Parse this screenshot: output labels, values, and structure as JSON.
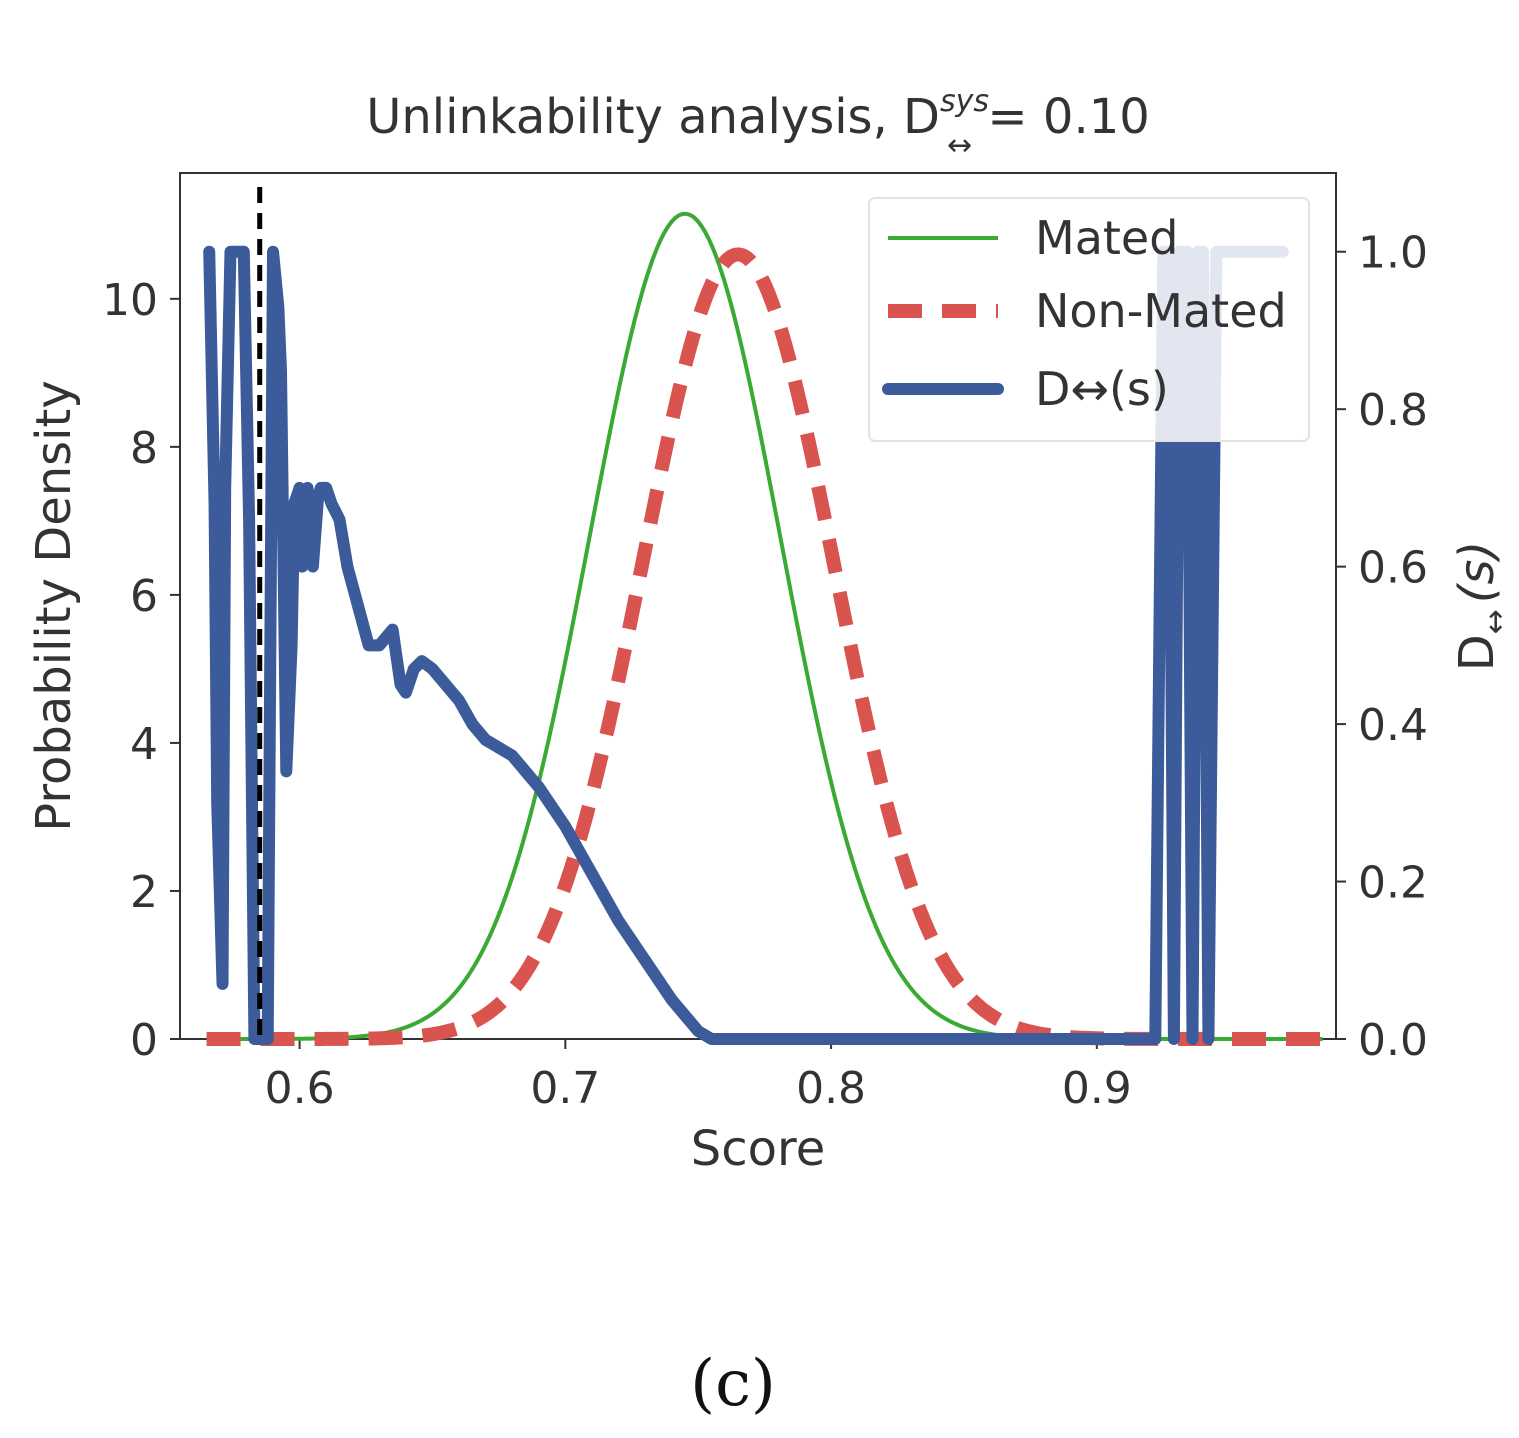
{
  "chart_data": {
    "type": "line",
    "title": {
      "prefix": "Unlinkability analysis, D",
      "superscript": "sys",
      "subscript": "↔",
      "suffix": " = 0.10"
    },
    "xlabel": "Score",
    "ylabel": "Probability Density",
    "ylabel_right": {
      "main": "D",
      "sub": "↔",
      "paren": "(s)"
    },
    "xlim": [
      0.555,
      0.99
    ],
    "ylim": [
      0,
      11.7
    ],
    "ylim_right": [
      0,
      1.1
    ],
    "xticks": [
      {
        "value": 0.6,
        "label": "0.6"
      },
      {
        "value": 0.7,
        "label": "0.7"
      },
      {
        "value": 0.8,
        "label": "0.8"
      },
      {
        "value": 0.9,
        "label": "0.9"
      }
    ],
    "yticks": [
      {
        "value": 0,
        "label": "0"
      },
      {
        "value": 2,
        "label": "2"
      },
      {
        "value": 4,
        "label": "4"
      },
      {
        "value": 6,
        "label": "6"
      },
      {
        "value": 8,
        "label": "8"
      },
      {
        "value": 10,
        "label": "10"
      }
    ],
    "yticks_right": [
      {
        "value": 0.0,
        "label": "0.0"
      },
      {
        "value": 0.2,
        "label": "0.2"
      },
      {
        "value": 0.4,
        "label": "0.4"
      },
      {
        "value": 0.6,
        "label": "0.6"
      },
      {
        "value": 0.8,
        "label": "0.8"
      },
      {
        "value": 1.0,
        "label": "1.0"
      }
    ],
    "threshold_line": {
      "x": 0.585
    },
    "legend_position": "top-right",
    "series": [
      {
        "name": "Mated",
        "legend_label": "Mated",
        "axis": "left",
        "color": "#3aaa35",
        "style": "solid",
        "curve": "gaussian",
        "mean": 0.745,
        "sd": 0.036,
        "peak": 11.15,
        "x_range": [
          0.565,
          0.985
        ]
      },
      {
        "name": "Non-Mated",
        "legend_label": "Non-Mated",
        "axis": "left",
        "color": "#d9534f",
        "style": "dashed",
        "curve": "gaussian",
        "mean": 0.765,
        "sd": 0.036,
        "peak": 10.6,
        "x_range": [
          0.565,
          0.985
        ]
      },
      {
        "name": "D(s)",
        "legend_label": "D↔(s)",
        "axis": "right",
        "color": "#3b5b9a",
        "style": "solid",
        "x": [
          0.566,
          0.568,
          0.569,
          0.571,
          0.572,
          0.574,
          0.575,
          0.577,
          0.579,
          0.581,
          0.583,
          0.584,
          0.586,
          0.588,
          0.59,
          0.592,
          0.593,
          0.595,
          0.597,
          0.598,
          0.6,
          0.601,
          0.603,
          0.605,
          0.607,
          0.608,
          0.61,
          0.612,
          0.615,
          0.618,
          0.622,
          0.626,
          0.63,
          0.635,
          0.638,
          0.64,
          0.643,
          0.646,
          0.65,
          0.655,
          0.66,
          0.665,
          0.67,
          0.675,
          0.68,
          0.69,
          0.7,
          0.71,
          0.72,
          0.73,
          0.74,
          0.75,
          0.755,
          0.8,
          0.85,
          0.9,
          0.922,
          0.925,
          0.927,
          0.929,
          0.931,
          0.934,
          0.936,
          0.938,
          0.94,
          0.942,
          0.945,
          0.948,
          0.95,
          0.96,
          0.97
        ],
        "values": [
          1.0,
          0.68,
          0.3,
          0.07,
          0.7,
          1.0,
          1.0,
          1.0,
          1.0,
          0.66,
          0.0,
          0.0,
          0.0,
          0.0,
          1.0,
          0.93,
          0.85,
          0.34,
          0.5,
          0.68,
          0.7,
          0.6,
          0.7,
          0.6,
          0.69,
          0.7,
          0.7,
          0.68,
          0.66,
          0.6,
          0.55,
          0.5,
          0.5,
          0.52,
          0.45,
          0.44,
          0.47,
          0.48,
          0.47,
          0.45,
          0.43,
          0.4,
          0.38,
          0.37,
          0.36,
          0.32,
          0.27,
          0.21,
          0.15,
          0.1,
          0.05,
          0.01,
          0.0,
          0.0,
          0.0,
          0.0,
          0.0,
          1.0,
          1.0,
          0.0,
          1.0,
          1.0,
          0.0,
          1.0,
          1.0,
          0.0,
          1.0,
          1.0,
          1.0,
          1.0,
          1.0
        ]
      }
    ]
  },
  "caption": "(c)"
}
